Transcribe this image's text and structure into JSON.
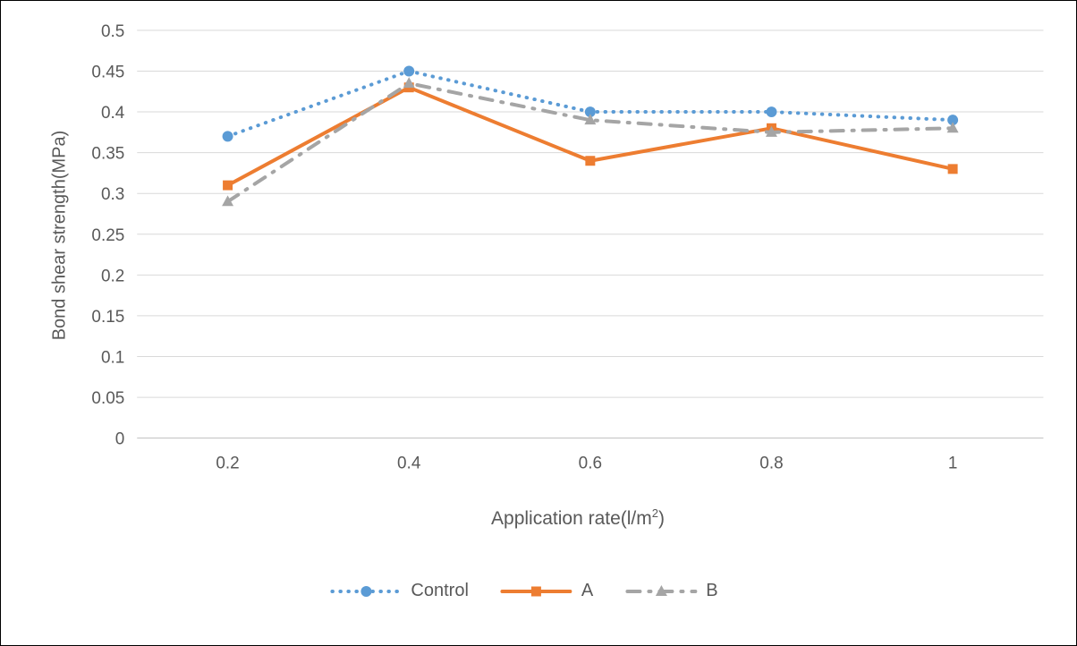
{
  "chart_data": {
    "type": "line",
    "title": "",
    "ylabel": "Bond shear strength(MPa)",
    "xlabel": "Application rate(l/m2)",
    "xlabel_parts": {
      "pre": "Application rate(l/m",
      "sup": "2",
      "post": ")"
    },
    "categories": [
      "0.2",
      "0.4",
      "0.6",
      "0.8",
      "1"
    ],
    "ylim": [
      0,
      0.5
    ],
    "y_tick_step": 0.05,
    "y_tick_labels": [
      "0",
      "0.05",
      "0.1",
      "0.15",
      "0.2",
      "0.25",
      "0.3",
      "0.35",
      "0.4",
      "0.45",
      "0.5"
    ],
    "grid": "horizontal-only",
    "gridline_color": "#D9D9D9",
    "axis_line_color": "#BFBFBF",
    "tick_label_color": "#595959",
    "tick_font_size": 19,
    "legend_position": "bottom",
    "series": [
      {
        "name": "Control",
        "color": "#5B9BD5",
        "line_style": "dotted",
        "marker": "circle",
        "values": [
          0.37,
          0.45,
          0.4,
          0.4,
          0.39
        ]
      },
      {
        "name": "A",
        "color": "#ED7D31",
        "line_style": "solid",
        "marker": "square",
        "values": [
          0.31,
          0.43,
          0.34,
          0.38,
          0.33
        ]
      },
      {
        "name": "B",
        "color": "#A5A5A5",
        "line_style": "dash-dot",
        "marker": "triangle",
        "values": [
          0.29,
          0.435,
          0.39,
          0.375,
          0.38
        ]
      }
    ]
  }
}
